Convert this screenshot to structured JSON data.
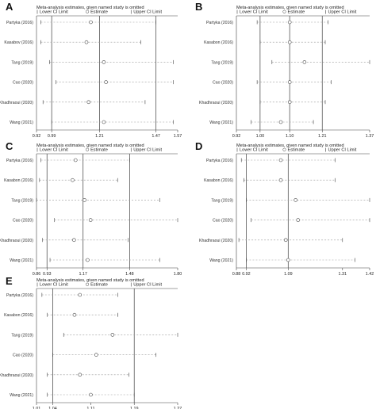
{
  "header": {
    "title": "Meta-analysis estimates, given named study is omitted",
    "legend_lower": "Lower CI Limit",
    "legend_estimate": "Estimate",
    "legend_upper": "Upper CI Limit"
  },
  "colors": {
    "line": "#555555",
    "dash": "#9a9a9a",
    "frame": "#444444",
    "text": "#222222"
  },
  "chart_data": [
    {
      "type": "forest",
      "panel": "A",
      "xlim": [
        0.92,
        1.57
      ],
      "ticks": [
        "0.92",
        "0.99",
        "1.21",
        "1.47",
        "1.57"
      ],
      "tick_values": [
        0.92,
        0.99,
        1.21,
        1.47,
        1.57
      ],
      "ref_lines": [
        0.99,
        1.21,
        1.47
      ],
      "studies": [
        "Partyka (2016)",
        "Kasabov (2016)",
        "Tang (2019)",
        "Cao (2020)",
        "Khadhraoui (2020)",
        "Wang (2021)"
      ],
      "estimate": [
        1.17,
        1.15,
        1.23,
        1.24,
        1.16,
        1.23
      ],
      "lower": [
        0.94,
        0.94,
        0.98,
        1.01,
        0.95,
        0.99
      ],
      "upper": [
        1.47,
        1.4,
        1.55,
        1.55,
        1.42,
        1.55
      ]
    },
    {
      "type": "forest",
      "panel": "B",
      "xlim": [
        0.92,
        1.37
      ],
      "ticks": [
        "0.92",
        "1.00",
        "1.10",
        "1.21",
        "1.37"
      ],
      "tick_values": [
        0.92,
        1.0,
        1.1,
        1.21,
        1.37
      ],
      "ref_lines": [
        1.0,
        1.1,
        1.21
      ],
      "studies": [
        "Partyka (2016)",
        "Kasabon (2016)",
        "Tang (2019)",
        "Cao (2020)",
        "Khadhraoui (2020)",
        "Wang (2021)"
      ],
      "estimate": [
        1.1,
        1.1,
        1.15,
        1.1,
        1.1,
        1.07
      ],
      "lower": [
        0.99,
        1.0,
        1.04,
        0.99,
        1.0,
        0.97
      ],
      "upper": [
        1.23,
        1.22,
        1.37,
        1.24,
        1.22,
        1.18
      ]
    },
    {
      "type": "forest",
      "panel": "C",
      "xlim": [
        0.86,
        1.8
      ],
      "ticks": [
        "0.86",
        "0.93",
        "1.17",
        "1.48",
        "1.80"
      ],
      "tick_values": [
        0.86,
        0.93,
        1.17,
        1.48,
        1.8
      ],
      "ref_lines": [
        0.93,
        1.17,
        1.48
      ],
      "studies": [
        "Partyka (2016)",
        "Kasabon (2016)",
        "Tang (2019)",
        "Cao (2020)",
        "Khadhraoui (2020)",
        "Wang (2021)"
      ],
      "estimate": [
        1.12,
        1.1,
        1.18,
        1.22,
        1.11,
        1.2
      ],
      "lower": [
        0.89,
        0.88,
        0.86,
        0.98,
        0.9,
        0.95
      ],
      "upper": [
        1.48,
        1.4,
        1.68,
        1.8,
        1.47,
        1.68
      ]
    },
    {
      "type": "forest",
      "panel": "D",
      "xlim": [
        0.88,
        1.42
      ],
      "ticks": [
        "0.88",
        "0.92",
        "1.09",
        "1.31",
        "1.42"
      ],
      "tick_values": [
        0.88,
        0.92,
        1.09,
        1.31,
        1.42
      ],
      "ref_lines": [
        0.92,
        1.09
      ],
      "studies": [
        "Partyka (2016)",
        "Kasabon (2016)",
        "Tang (2019)",
        "Cao (2020)",
        "Khadhraoui (2020)",
        "Wang (2021)"
      ],
      "estimate": [
        1.06,
        1.06,
        1.12,
        1.13,
        1.08,
        1.09
      ],
      "lower": [
        0.9,
        0.91,
        0.92,
        0.94,
        0.89,
        0.92
      ],
      "upper": [
        1.28,
        1.28,
        1.42,
        1.42,
        1.31,
        1.36
      ]
    },
    {
      "type": "forest",
      "panel": "E",
      "xlim": [
        1.01,
        1.27
      ],
      "ticks": [
        "1.01",
        "1.04",
        "1.11",
        "1.19",
        "1.27"
      ],
      "tick_values": [
        1.01,
        1.04,
        1.11,
        1.19,
        1.27
      ],
      "ref_lines": [
        1.04,
        1.19
      ],
      "studies": [
        "Partyka (2016)",
        "Kasabon (2016)",
        "Tang (2019)",
        "Cao (2020)",
        "Khadhraoui (2020)",
        "Wang (2021)"
      ],
      "estimate": [
        1.09,
        1.08,
        1.15,
        1.12,
        1.09,
        1.11
      ],
      "lower": [
        1.02,
        1.03,
        1.06,
        1.04,
        1.03,
        1.03
      ],
      "upper": [
        1.16,
        1.16,
        1.27,
        1.23,
        1.18,
        1.19
      ]
    }
  ]
}
